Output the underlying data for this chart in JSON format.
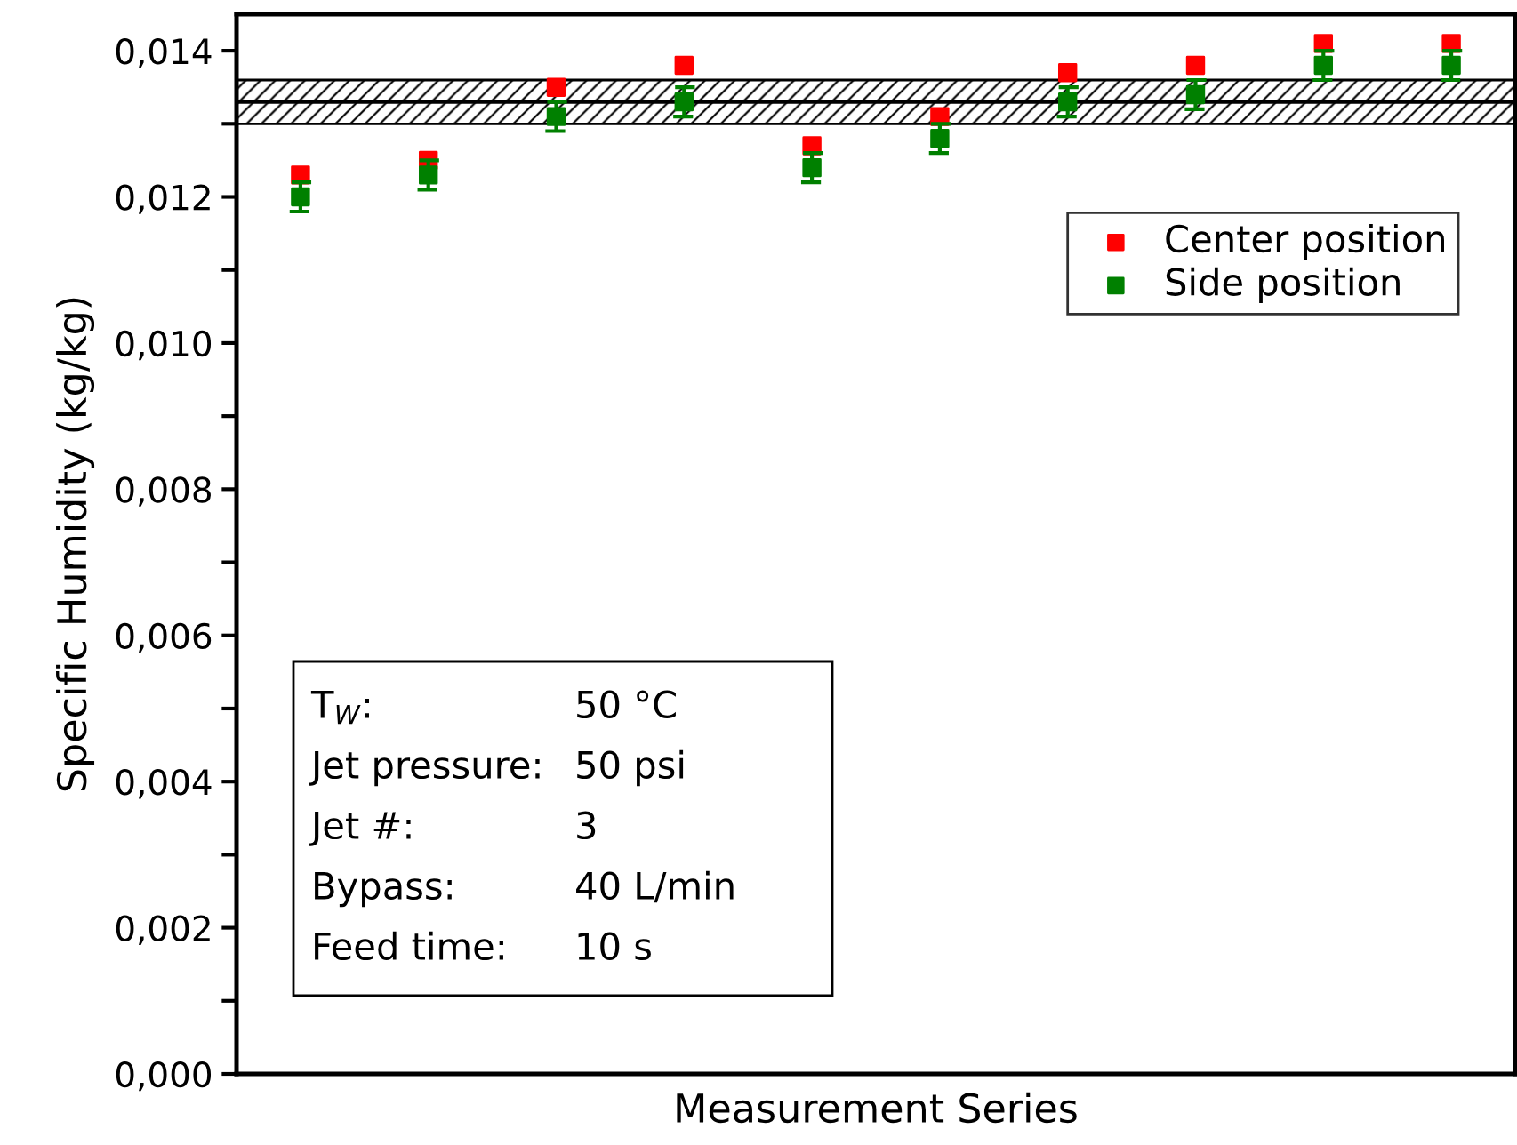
{
  "chart_data": {
    "type": "scatter",
    "xlabel": "Measurement Series",
    "ylabel": "Specific Humidity (kg/kg)",
    "categories": [
      null,
      null,
      null,
      null,
      null,
      null,
      null,
      null,
      null,
      null
    ],
    "series": [
      {
        "name": "Center position",
        "color": "#ff0000",
        "values": [
          0.0123,
          0.0125,
          0.0135,
          0.0138,
          0.0127,
          0.0131,
          0.0137,
          0.0138,
          0.0141,
          0.0141
        ]
      },
      {
        "name": "Side position",
        "color": "#008000",
        "values": [
          0.012,
          0.0123,
          0.0131,
          0.0133,
          0.0124,
          0.0128,
          0.0133,
          0.0134,
          0.0138,
          0.0138
        ],
        "errors": [
          0.0002,
          0.0002,
          0.0002,
          0.0002,
          0.0002,
          0.0002,
          0.0002,
          0.0002,
          0.0002,
          0.0002
        ]
      }
    ],
    "ylim": [
      0,
      0.0145
    ],
    "yticks": [
      {
        "value": 0,
        "label": "0,000"
      },
      {
        "value": 0.001,
        "label": null
      },
      {
        "value": 0.002,
        "label": "0,002"
      },
      {
        "value": 0.003,
        "label": null
      },
      {
        "value": 0.004,
        "label": "0,004"
      },
      {
        "value": 0.005,
        "label": null
      },
      {
        "value": 0.006,
        "label": "0,006"
      },
      {
        "value": 0.007,
        "label": null
      },
      {
        "value": 0.008,
        "label": "0,008"
      },
      {
        "value": 0.009,
        "label": null
      },
      {
        "value": 0.01,
        "label": "0,010"
      },
      {
        "value": 0.011,
        "label": null
      },
      {
        "value": 0.012,
        "label": "0,012"
      },
      {
        "value": 0.013,
        "label": null
      },
      {
        "value": 0.014,
        "label": "0,014"
      }
    ],
    "ref_lines": [
      {
        "axis": "y",
        "value": 0.0133,
        "color": "#000000",
        "line_style": "solid"
      }
    ],
    "bands": [
      {
        "axis": "y",
        "from": 0.013,
        "to": 0.0136,
        "color": "#000000"
      }
    ],
    "annotations": [
      "T$_{W}$:",
      "50 °C",
      "Jet pressure:",
      "50 psi",
      "Jet #:",
      "3",
      "Bypass:",
      "40 L/min",
      "Feed time:",
      "10 s"
    ],
    "marker": "square",
    "legend": "top right",
    "grid": false
  }
}
